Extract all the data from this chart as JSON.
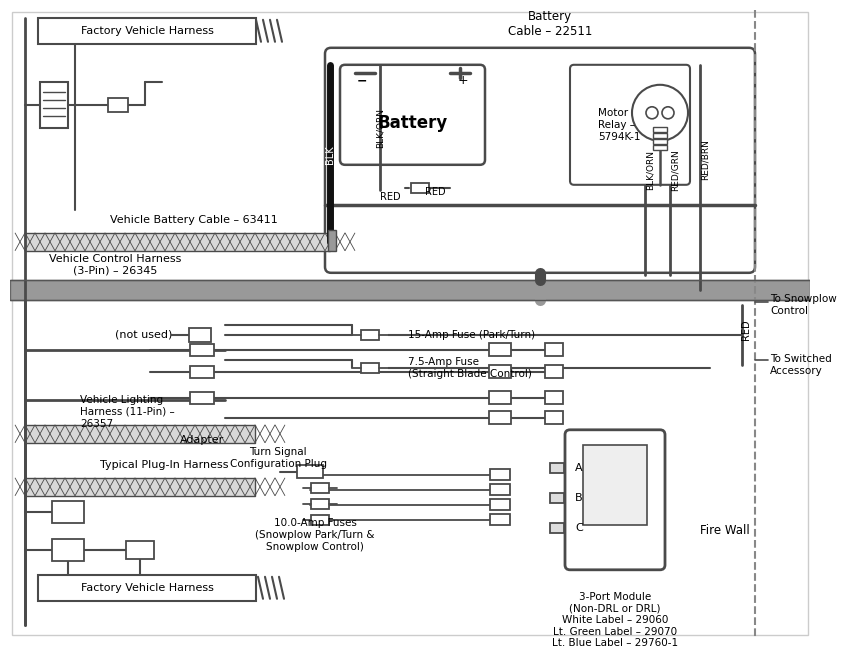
{
  "bg_color": "#ffffff",
  "dg": "#4a4a4a",
  "bk": "#111111",
  "gray_wire": "#888888",
  "labels": {
    "factory_harness_top": "Factory Vehicle Harness",
    "battery_cable_label": "Battery\nCable – 22511",
    "vehicle_battery_cable": "Vehicle Battery Cable – 63411",
    "vehicle_control_harness": "Vehicle Control Harness\n(3-Pin) – 26345",
    "not_used": "(not used)",
    "vehicle_lighting_harness": "Vehicle Lighting\nHarness (11-Pin) –\n26357",
    "adapter": "Adapter",
    "turn_signal": "Turn Signal\nConfiguration Plug",
    "typical_plug": "Typical Plug-In Harness",
    "factory_harness_bottom": "Factory Vehicle Harness",
    "fuse_15amp": "15-Amp Fuse (Park/Turn)",
    "fuse_75amp": "7.5-Amp Fuse\n(Straight Blade Control)",
    "fuse_10amp": "10.0-Amp Fuses\n(Snowplow Park/Turn &\nSnowplow Control)",
    "three_port_module": "3-Port Module\n(Non-DRL or DRL)\nWhite Label – 29060\nLt. Green Label – 29070\nLt. Blue Label – 29760-1",
    "fire_wall": "Fire Wall",
    "to_snowplow_control": "To Snowplow\nControl",
    "to_switched_accessory": "To Switched\nAccessory",
    "battery_label": "Battery",
    "motor_relay": "Motor\nRelay –\n5794K-1",
    "blk": "BLK",
    "blk_orn": "BLK/ORN",
    "red_label": "RED",
    "red_brn": "RED/BRN",
    "red_grn": "RED/GRN",
    "minus": "−",
    "plus": "+"
  }
}
